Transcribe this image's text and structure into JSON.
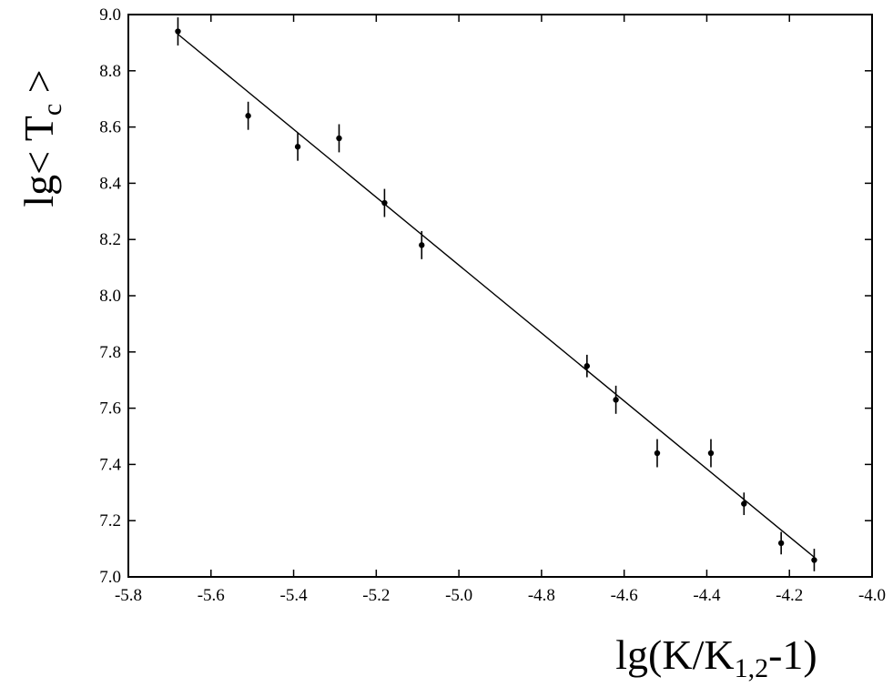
{
  "chart_data": {
    "type": "scatter",
    "title": "",
    "xlabel": {
      "main": "lg(K/K",
      "sub": "1,2",
      "tail": "-1)"
    },
    "ylabel": {
      "main": "lg< T",
      "sub": "c",
      "tail": " >"
    },
    "xlim": [
      -5.8,
      -4.0
    ],
    "ylim": [
      7.0,
      9.0
    ],
    "xticks": [
      "-5.8",
      "-5.6",
      "-5.4",
      "-5.2",
      "-5.0",
      "-4.8",
      "-4.6",
      "-4.4",
      "-4.2",
      "-4.0"
    ],
    "yticks": [
      "7.0",
      "7.2",
      "7.4",
      "7.6",
      "7.8",
      "8.0",
      "8.2",
      "8.4",
      "8.6",
      "8.8",
      "9.0"
    ],
    "grid": false,
    "series": [
      {
        "x": [
          -5.68,
          -5.51,
          -5.39,
          -5.29,
          -5.18,
          -5.09,
          -4.69,
          -4.62,
          -4.52,
          -4.39,
          -4.31,
          -4.22,
          -4.14
        ],
        "y": [
          8.94,
          8.64,
          8.53,
          8.56,
          8.33,
          8.18,
          7.75,
          7.63,
          7.44,
          7.44,
          7.26,
          7.12,
          7.06
        ],
        "yerr": [
          0.05,
          0.05,
          0.05,
          0.05,
          0.05,
          0.05,
          0.04,
          0.05,
          0.05,
          0.05,
          0.04,
          0.04,
          0.04
        ]
      }
    ],
    "fit_line": {
      "x": [
        -5.68,
        -4.14
      ],
      "y": [
        8.93,
        7.07
      ]
    }
  }
}
